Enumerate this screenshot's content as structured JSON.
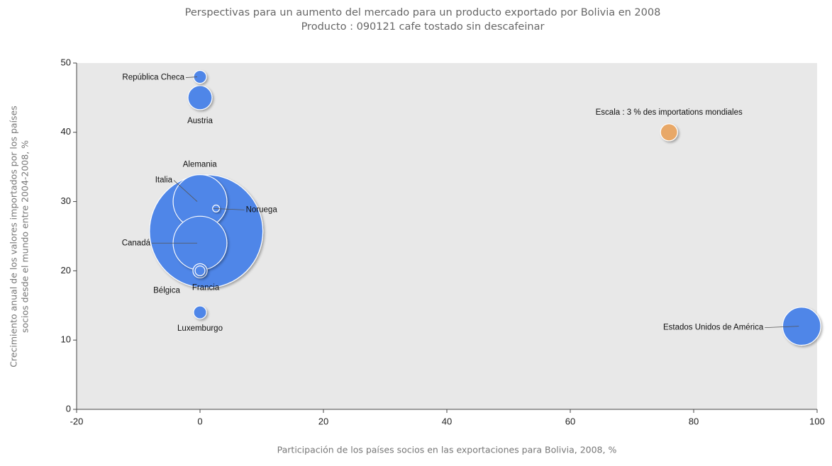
{
  "chart_data": {
    "type": "bubble",
    "title": "Perspectivas para un aumento del mercado para un producto exportado por Bolivia en 2008",
    "subtitle": "Producto : 090121 cafe tostado sin descafeinar",
    "x_label": "Participación de los países socios en las exportaciones para Bolivia, 2008, %",
    "y_label": [
      "Crecimiento anual de los valores importados por los países",
      "socios desde el mundo entre 2004-2008, %"
    ],
    "xlim": [
      -20,
      100
    ],
    "xticks": [
      -20,
      0,
      20,
      40,
      60,
      80,
      100
    ],
    "ylim": [
      0,
      50
    ],
    "yticks": [
      0,
      10,
      20,
      30,
      40,
      50
    ],
    "color": "#4f86e8",
    "points": [
      {
        "name": "Alemania",
        "x": 1,
        "y": 25.7,
        "size": 133
      },
      {
        "name": "Italia",
        "x": 0,
        "y": 30,
        "size": 30
      },
      {
        "name": "Canadá",
        "x": 0,
        "y": 24,
        "size": 30
      },
      {
        "name": "Estados Unidos de América",
        "x": 97.5,
        "y": 12,
        "size": 15
      },
      {
        "name": "Austria",
        "x": 0,
        "y": 45,
        "size": 6
      },
      {
        "name": "Francia",
        "x": 0,
        "y": 20,
        "size": 2.1
      },
      {
        "name": "República Checa",
        "x": 0,
        "y": 48,
        "size": 1.7
      },
      {
        "name": "Luxemburgo",
        "x": 0,
        "y": 14,
        "size": 1.7
      },
      {
        "name": "Bélgica",
        "x": 0,
        "y": 20,
        "size": 1
      },
      {
        "name": "Noruega",
        "x": 2.6,
        "y": 29,
        "size": 0.5
      }
    ],
    "scale": {
      "label": "Escala : 3 % des importations mondiales",
      "x": 76,
      "y": 40,
      "size": 3,
      "color": "#e8a868"
    }
  }
}
